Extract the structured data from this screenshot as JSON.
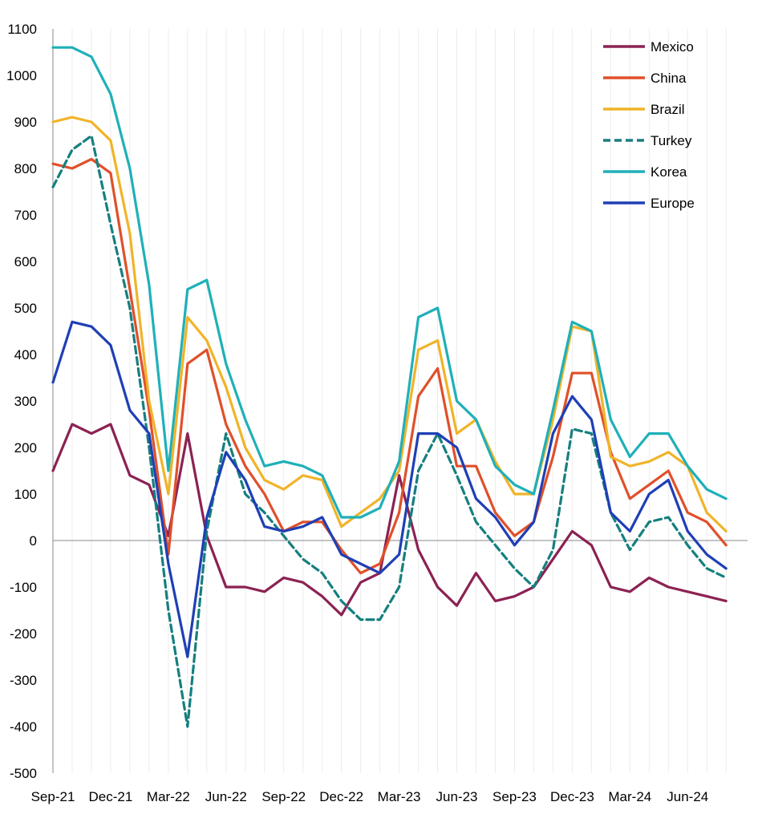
{
  "chart_data": {
    "type": "line",
    "title": "",
    "xlabel": "",
    "ylabel": "",
    "ylim": [
      -500,
      1100
    ],
    "yticks": [
      -500,
      -400,
      -300,
      -200,
      -100,
      0,
      100,
      200,
      300,
      400,
      500,
      600,
      700,
      800,
      900,
      1000,
      1100
    ],
    "x_tick_labels": [
      "Sep-21",
      "Dec-21",
      "Mar-22",
      "Jun-22",
      "Sep-22",
      "Dec-22",
      "Mar-23",
      "Jun-23",
      "Sep-23",
      "Dec-23",
      "Mar-24",
      "Jun-24"
    ],
    "x_months": [
      "2021-09",
      "2021-10",
      "2021-11",
      "2021-12",
      "2022-01",
      "2022-02",
      "2022-03",
      "2022-04",
      "2022-05",
      "2022-06",
      "2022-07",
      "2022-08",
      "2022-09",
      "2022-10",
      "2022-11",
      "2022-12",
      "2023-01",
      "2023-02",
      "2023-03",
      "2023-04",
      "2023-05",
      "2023-06",
      "2023-07",
      "2023-08",
      "2023-09",
      "2023-10",
      "2023-11",
      "2023-12",
      "2024-01",
      "2024-02",
      "2024-03",
      "2024-04",
      "2024-05",
      "2024-06",
      "2024-07",
      "2024-08"
    ],
    "grid": "vertical",
    "legend_position": "top-right",
    "series": [
      {
        "name": "Mexico",
        "color": "#8B2252",
        "dash": false,
        "values": [
          150,
          250,
          230,
          250,
          140,
          120,
          10,
          230,
          10,
          -100,
          -100,
          -110,
          -80,
          -90,
          -120,
          -160,
          -90,
          -70,
          140,
          -20,
          -100,
          -140,
          -70,
          -130,
          -120,
          -100,
          -40,
          20,
          -10,
          -100,
          -110,
          -80,
          -100,
          -110,
          -120,
          -130
        ]
      },
      {
        "name": "China",
        "color": "#E0502A",
        "dash": false,
        "values": [
          810,
          800,
          820,
          790,
          540,
          280,
          -30,
          380,
          410,
          250,
          160,
          100,
          20,
          40,
          40,
          -20,
          -70,
          -50,
          60,
          310,
          370,
          160,
          160,
          60,
          10,
          40,
          180,
          360,
          360,
          190,
          90,
          120,
          150,
          60,
          40,
          -10
        ]
      },
      {
        "name": "Brazil",
        "color": "#F0B429",
        "dash": false,
        "values": [
          900,
          910,
          900,
          860,
          660,
          300,
          100,
          480,
          430,
          330,
          200,
          130,
          110,
          140,
          130,
          30,
          60,
          90,
          150,
          410,
          430,
          230,
          260,
          170,
          100,
          100,
          260,
          460,
          450,
          180,
          160,
          170,
          190,
          160,
          60,
          20
        ]
      },
      {
        "name": "Turkey",
        "color": "#167F7F",
        "dash": true,
        "values": [
          760,
          840,
          870,
          680,
          500,
          200,
          -150,
          -400,
          20,
          230,
          100,
          60,
          10,
          -40,
          -70,
          -130,
          -170,
          -170,
          -100,
          150,
          230,
          140,
          40,
          -10,
          -60,
          -100,
          -20,
          240,
          230,
          60,
          -20,
          40,
          50,
          -10,
          -60,
          -80
        ]
      },
      {
        "name": "Korea",
        "color": "#1FB0B8",
        "dash": false,
        "values": [
          1060,
          1060,
          1040,
          960,
          800,
          550,
          150,
          540,
          560,
          380,
          260,
          160,
          170,
          160,
          140,
          50,
          50,
          70,
          170,
          480,
          500,
          300,
          260,
          160,
          120,
          100,
          280,
          470,
          450,
          260,
          180,
          230,
          230,
          160,
          110,
          90
        ]
      },
      {
        "name": "Europe",
        "color": "#1F3FB5",
        "dash": false,
        "values": [
          340,
          470,
          460,
          420,
          280,
          230,
          -50,
          -250,
          50,
          190,
          130,
          30,
          20,
          30,
          50,
          -30,
          -50,
          -70,
          -30,
          230,
          230,
          200,
          90,
          50,
          -10,
          40,
          230,
          310,
          260,
          60,
          20,
          100,
          130,
          20,
          -30,
          -60
        ]
      }
    ]
  }
}
